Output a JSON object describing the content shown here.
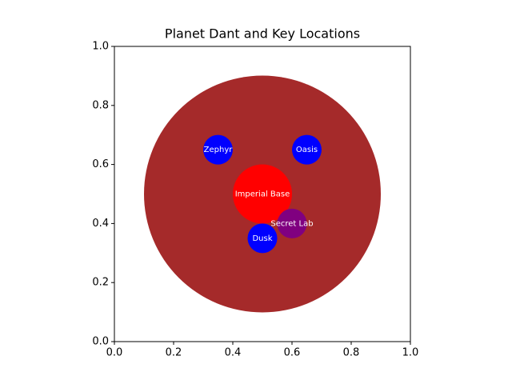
{
  "chart_data": {
    "type": "circles",
    "title": "Planet Dant and Key Locations",
    "circles": [
      {
        "label": null,
        "x": 0.5,
        "y": 0.5,
        "r": 0.4,
        "color": "#a52a2a"
      },
      {
        "label": "Imperial Base",
        "x": 0.5,
        "y": 0.5,
        "r": 0.1,
        "color": "#ff0000"
      },
      {
        "label": "Zephyr",
        "x": 0.35,
        "y": 0.65,
        "r": 0.05,
        "color": "#0000ff"
      },
      {
        "label": "Oasis",
        "x": 0.65,
        "y": 0.65,
        "r": 0.05,
        "color": "#0000ff"
      },
      {
        "label": "Dusk",
        "x": 0.5,
        "y": 0.35,
        "r": 0.05,
        "color": "#0000ff"
      },
      {
        "label": "Secret Lab",
        "x": 0.6,
        "y": 0.4,
        "r": 0.05,
        "color": "#800080"
      }
    ],
    "label_color": "#ffffff",
    "xlim": [
      0,
      1
    ],
    "ylim": [
      0,
      1
    ],
    "xticks": [
      {
        "value": 0,
        "label": "0.0"
      },
      0.2,
      0.4,
      0.6,
      0.8,
      {
        "value": 1,
        "label": "1.0"
      }
    ],
    "yticks": [
      {
        "value": 0,
        "label": "0.0"
      },
      0.2,
      0.4,
      0.6,
      0.8,
      {
        "value": 1,
        "label": "1.0"
      }
    ]
  }
}
